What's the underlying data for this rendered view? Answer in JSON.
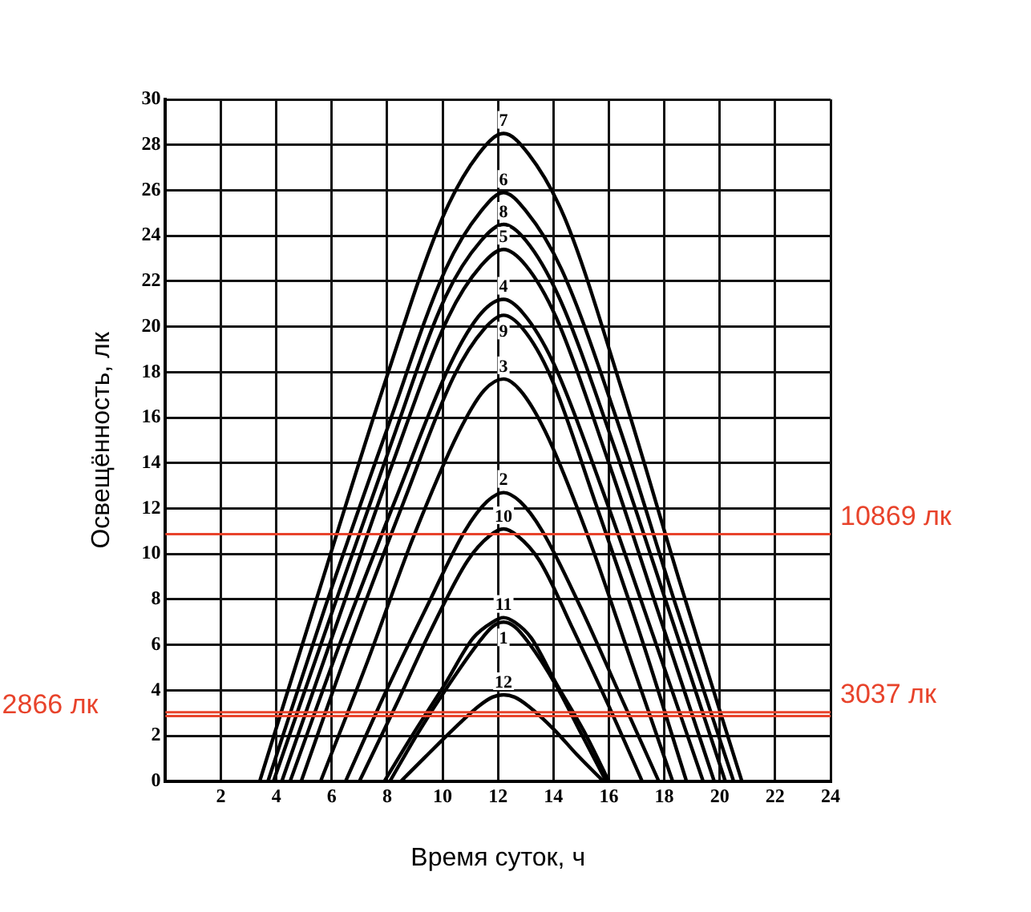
{
  "chart_data": {
    "type": "line",
    "xlabel": "Время суток, ч",
    "ylabel": "Освещённость, лк",
    "xlim": [
      0,
      24
    ],
    "xticks": [
      {
        "value": 0,
        "label": null
      },
      2,
      4,
      6,
      8,
      10,
      12,
      14,
      16,
      18,
      20,
      22,
      24
    ],
    "ylim": [
      0,
      30
    ],
    "yticks": [
      0,
      2,
      4,
      6,
      8,
      10,
      12,
      14,
      16,
      18,
      20,
      22,
      24,
      26,
      28,
      30
    ],
    "grid": true,
    "legend": false,
    "marker": "none",
    "line_style": "solid",
    "series": [
      {
        "name": "7",
        "color": "#000000",
        "x": [
          3.4,
          5.6,
          7.8,
          10.0,
          11.3,
          12.2,
          13.1,
          14.4,
          16.5,
          18.6,
          20.8
        ],
        "values": [
          0,
          8.6,
          17.1,
          24.8,
          27.6,
          28.5,
          27.6,
          24.8,
          17.1,
          8.6,
          0
        ]
      },
      {
        "name": "6",
        "color": "#000000",
        "x": [
          3.7,
          5.8,
          8.0,
          10.1,
          11.4,
          12.2,
          13.0,
          14.3,
          16.4,
          18.4,
          20.5
        ],
        "values": [
          0,
          7.8,
          15.5,
          22.5,
          25.1,
          25.9,
          25.1,
          22.5,
          15.5,
          7.8,
          0
        ]
      },
      {
        "name": "8",
        "color": "#000000",
        "x": [
          3.9,
          6.0,
          8.1,
          10.1,
          11.4,
          12.2,
          13.0,
          14.2,
          16.2,
          18.2,
          20.2
        ],
        "values": [
          0,
          7.4,
          14.7,
          21.3,
          23.8,
          24.5,
          23.8,
          21.3,
          14.7,
          7.4,
          0
        ]
      },
      {
        "name": "5",
        "color": "#000000",
        "x": [
          4.2,
          6.2,
          8.2,
          10.2,
          11.4,
          12.2,
          13.0,
          14.1,
          16.0,
          17.9,
          19.8
        ],
        "values": [
          0,
          7.0,
          14.0,
          20.4,
          22.7,
          23.4,
          22.7,
          20.4,
          14.0,
          7.0,
          0
        ]
      },
      {
        "name": "4",
        "color": "#000000",
        "x": [
          4.5,
          6.4,
          8.4,
          10.3,
          11.4,
          12.2,
          12.9,
          14.0,
          15.8,
          17.6,
          19.4
        ],
        "values": [
          0,
          6.4,
          12.7,
          18.4,
          20.6,
          21.2,
          20.6,
          18.4,
          12.7,
          6.4,
          0
        ]
      },
      {
        "name": "9",
        "color": "#000000",
        "x": [
          4.9,
          6.7,
          8.6,
          10.4,
          11.5,
          12.2,
          12.9,
          13.9,
          15.5,
          17.2,
          18.8
        ],
        "values": [
          0,
          6.2,
          12.3,
          17.8,
          19.9,
          20.5,
          19.9,
          17.8,
          12.3,
          6.2,
          0
        ]
      },
      {
        "name": "3",
        "color": "#000000",
        "x": [
          5.6,
          7.3,
          8.9,
          10.6,
          11.5,
          12.2,
          12.8,
          13.7,
          15.3,
          16.8,
          18.3
        ],
        "values": [
          0,
          5.3,
          10.6,
          15.4,
          17.2,
          17.7,
          17.2,
          15.4,
          10.6,
          5.3,
          0
        ]
      },
      {
        "name": "2",
        "color": "#000000",
        "x": [
          6.5,
          7.9,
          9.4,
          10.8,
          11.6,
          12.2,
          12.8,
          13.6,
          15.0,
          16.4,
          17.8
        ],
        "values": [
          0,
          3.8,
          7.6,
          11.0,
          12.3,
          12.7,
          12.3,
          11.0,
          7.6,
          3.8,
          0
        ]
      },
      {
        "name": "10",
        "color": "#000000",
        "x": [
          7.0,
          8.3,
          9.6,
          10.9,
          11.7,
          12.2,
          12.7,
          13.5,
          14.7,
          16.0,
          17.2
        ],
        "values": [
          0,
          3.3,
          6.7,
          9.7,
          10.8,
          11.1,
          10.8,
          9.7,
          6.7,
          3.3,
          0
        ]
      },
      {
        "name": "11",
        "color": "#000000",
        "x": [
          7.9,
          9.0,
          10.1,
          11.1,
          11.8,
          12.2,
          12.6,
          13.2,
          14.1,
          15.1,
          16.0
        ],
        "values": [
          0,
          2.2,
          4.3,
          6.3,
          7.0,
          7.2,
          7.0,
          6.3,
          4.3,
          2.2,
          0
        ]
      },
      {
        "name": "1",
        "color": "#000000",
        "x": [
          8.1,
          9.1,
          10.2,
          11.3,
          11.8,
          12.2,
          12.6,
          13.1,
          14.1,
          15.0,
          15.9
        ],
        "values": [
          0,
          2.1,
          4.2,
          6.1,
          6.8,
          7.0,
          6.8,
          6.1,
          4.2,
          2.1,
          0
        ]
      },
      {
        "name": "12",
        "color": "#000000",
        "x": [
          8.5,
          9.4,
          10.4,
          11.3,
          11.8,
          12.2,
          12.6,
          13.1,
          14.0,
          14.9,
          15.8
        ],
        "values": [
          0,
          1.1,
          2.3,
          3.3,
          3.7,
          3.8,
          3.7,
          3.3,
          2.3,
          1.1,
          0
        ]
      }
    ],
    "ref_lines": [
      {
        "axis": "y",
        "value": 10.869,
        "label": "10869 лк",
        "color": "#e8432b"
      },
      {
        "axis": "y",
        "value": 3.037,
        "label": "3037 лк",
        "color": "#e8432b"
      },
      {
        "axis": "y",
        "value": 2.866,
        "label": "2866 лк",
        "color": "#e8432b"
      }
    ]
  }
}
